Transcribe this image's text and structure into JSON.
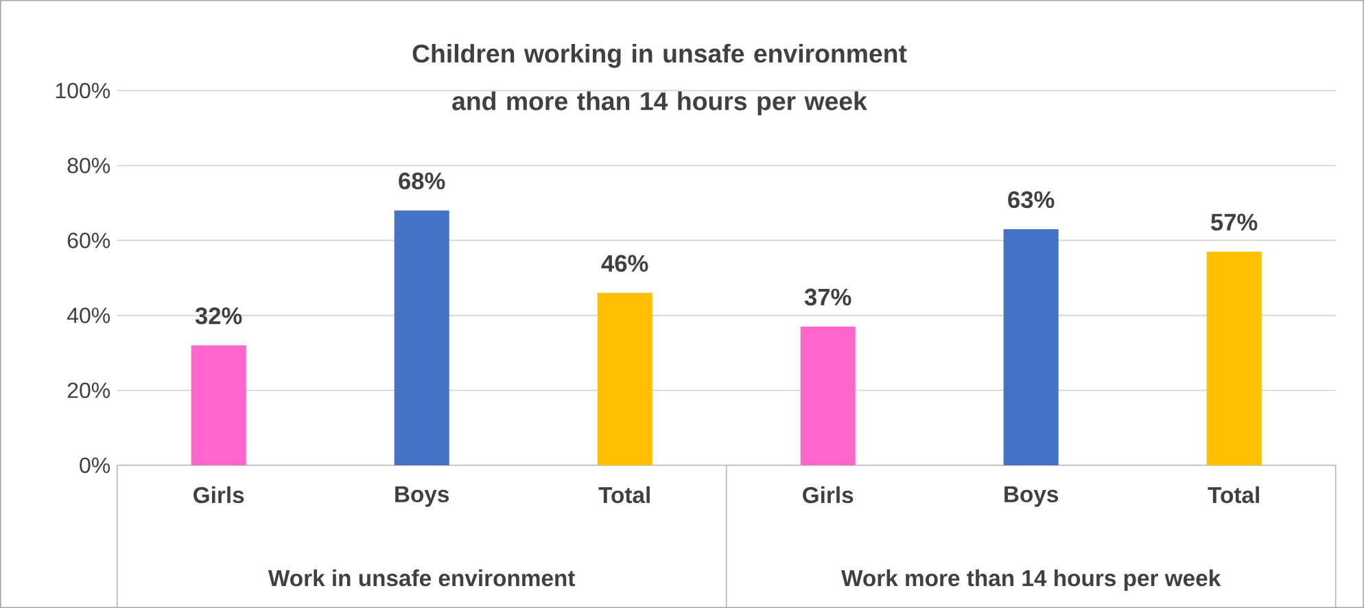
{
  "chart_data": {
    "type": "bar",
    "title": "Children working in unsafe environment and more than 14 hours per week",
    "categories": [
      "Girls",
      "Boys",
      "Total",
      "Girls",
      "Boys",
      "Total"
    ],
    "values": [
      32,
      68,
      46,
      37,
      63,
      57
    ],
    "colors": [
      "#ff66cc",
      "#4472c4",
      "#ffc000",
      "#ff66cc",
      "#4472c4",
      "#ffc000"
    ],
    "value_labels": [
      "32%",
      "68%",
      "46%",
      "37%",
      "63%",
      "57%"
    ],
    "annotations": [
      "Work in unsafe environment",
      "Work more than 14 hours per week"
    ],
    "ylim": [
      0,
      100
    ],
    "yticks": [
      {
        "value": 0,
        "label": "0%"
      },
      {
        "value": 20,
        "label": "20%"
      },
      {
        "value": 40,
        "label": "40%"
      },
      {
        "value": 60,
        "label": "60%"
      },
      {
        "value": 80,
        "label": "80%"
      },
      {
        "value": 100,
        "label": "100%"
      }
    ],
    "grid": "y"
  }
}
